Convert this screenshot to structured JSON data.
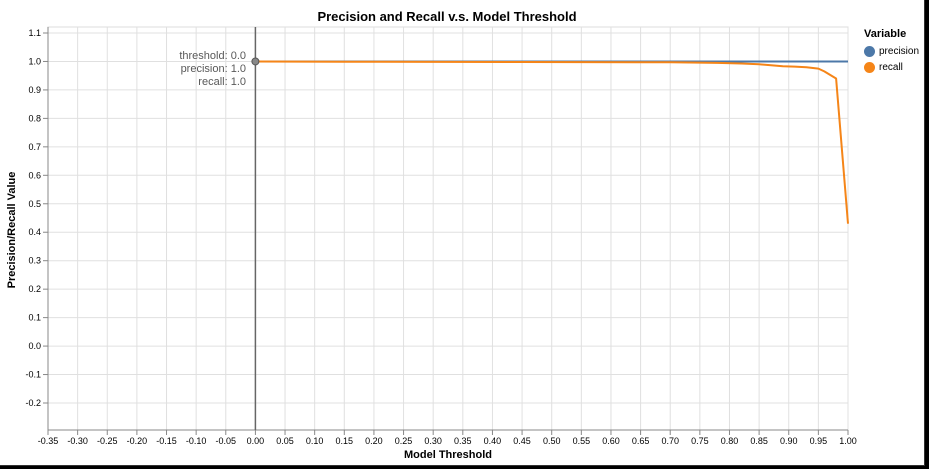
{
  "chart_data": {
    "type": "line",
    "title": "Precision and Recall v.s. Model Threshold",
    "xlabel": "Model Threshold",
    "ylabel": "Precision/Recall Value",
    "xlim": [
      -0.35,
      1.0
    ],
    "ylim": [
      -0.2,
      1.1
    ],
    "xticks": [
      -0.35,
      -0.3,
      -0.25,
      -0.2,
      -0.15,
      -0.1,
      -0.05,
      0.0,
      0.05,
      0.1,
      0.15,
      0.2,
      0.25,
      0.3,
      0.35,
      0.4,
      0.45,
      0.5,
      0.55,
      0.6,
      0.65,
      0.7,
      0.75,
      0.8,
      0.85,
      0.9,
      0.95,
      1.0
    ],
    "yticks": [
      -0.2,
      -0.1,
      0.0,
      0.1,
      0.2,
      0.3,
      0.4,
      0.5,
      0.6,
      0.7,
      0.8,
      0.9,
      1.0,
      1.1
    ],
    "grid": true,
    "legend": {
      "title": "Variable",
      "position": "right",
      "entries": [
        {
          "name": "precision",
          "color": "#4c78a8"
        },
        {
          "name": "recall",
          "color": "#f58518"
        }
      ]
    },
    "series": [
      {
        "name": "precision",
        "color": "#4c78a8",
        "x": [
          0.0,
          0.25,
          0.5,
          0.75,
          1.0
        ],
        "y": [
          1.0,
          1.0,
          1.0,
          1.0,
          1.0
        ]
      },
      {
        "name": "recall",
        "color": "#f58518",
        "x": [
          0.0,
          0.15,
          0.45,
          0.7,
          0.78,
          0.82,
          0.85,
          0.87,
          0.89,
          0.91,
          0.93,
          0.95,
          0.96,
          0.98,
          1.0
        ],
        "y": [
          1.0,
          0.999,
          0.998,
          0.997,
          0.995,
          0.993,
          0.99,
          0.987,
          0.983,
          0.982,
          0.98,
          0.975,
          0.965,
          0.94,
          0.43
        ]
      }
    ],
    "rule": {
      "x": 0.0
    },
    "highlight_point": {
      "x": 0.0,
      "y": 1.0
    },
    "tooltip": [
      "threshold: 0.0",
      "precision: 1.0",
      "recall: 1.0"
    ]
  }
}
